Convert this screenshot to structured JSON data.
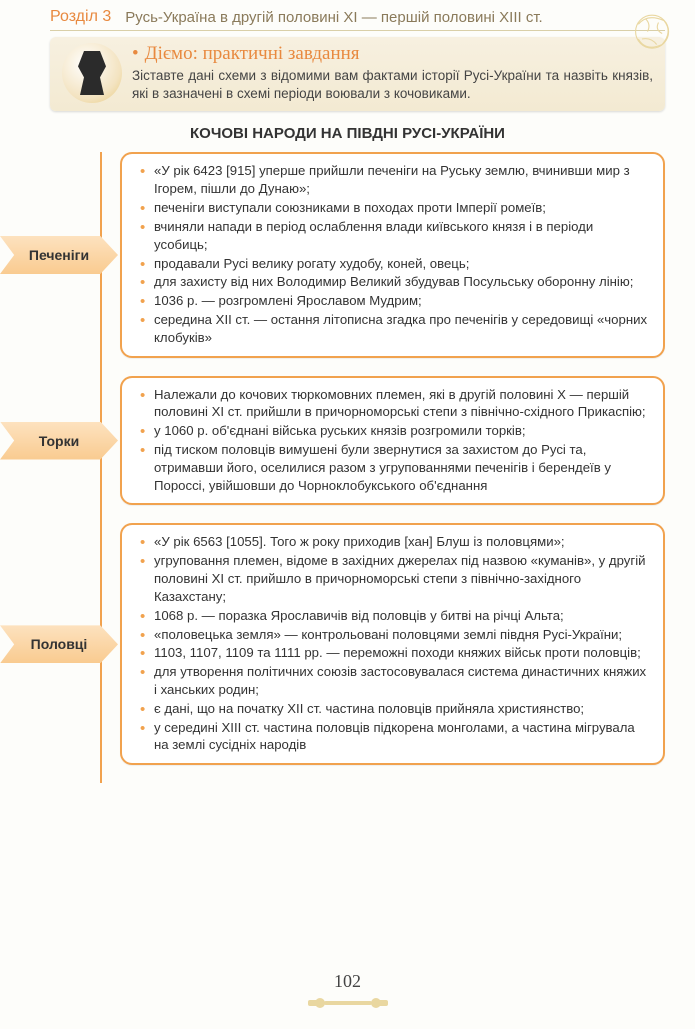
{
  "header": {
    "chapter": "Розділ 3",
    "title": "Русь-Україна в другій половині XI — першій половині XIII ст."
  },
  "callout": {
    "title": "Діємо: практичні завдання",
    "text": "Зіставте дані схеми з відомими вам фактами історії Русі-України та назвіть князів, які в зазначені в схемі періоди воювали з кочовиками.",
    "bg_gradient": [
      "#f7f0e0",
      "#f3ead2"
    ],
    "title_color": "#e8893f"
  },
  "section_title": "КОЧОВІ НАРОДИ НА ПІВДНІ РУСІ-УКРАЇНИ",
  "diagram": {
    "line_color": "#f1a24e",
    "label_gradient": [
      "#fde2bf",
      "#f9cb90"
    ],
    "box_border_color": "#f1a24e",
    "bullet_color": "#f1a24e",
    "blocks": [
      {
        "label": "Печеніги",
        "items": [
          "«У рік 6423 [915] уперше прийшли печеніги на Руську землю, вчинивши мир з Ігорем, пішли до Дунаю»;",
          "печеніги виступали союзниками в походах проти Імперії ромеїв;",
          "вчиняли напади в період ослаблення влади київського князя і в періоди усобиць;",
          "продавали Русі велику рогату худобу, коней, овець;",
          "для захисту від них Володимир Великий збудував Посульську оборонну лінію;",
          "1036 р. — розгромлені Ярославом Мудрим;",
          "середина XII ст. — остання літописна згадка про печенігів у середовищі «чорних клобуків»"
        ]
      },
      {
        "label": "Торки",
        "items": [
          "Належали до кочових тюркомовних племен, які в другій половині X — першій половині XI ст. прийшли в причорноморські степи з північно-східного Прикаспію;",
          "у 1060 р. об'єднані війська руських князів розгромили торків;",
          "під тиском половців вимушені були звернутися за захистом до Русі та, отримавши його, оселилися разом з угрупованнями печенігів і берендеїв у Пороссі, увійшовши до Чорноклобукського об'єднання"
        ]
      },
      {
        "label": "Половці",
        "items": [
          "«У рік 6563 [1055]. Того ж року приходив [хан] Блуш із половцями»;",
          "угруповання племен, відоме в західних джерелах під назвою «куманів», у другій половині XI ст. прийшло в причорноморські степи з північно-західного  Казахстану;",
          "1068 р. — поразка Ярославичів від половців у битві на річці Альта;",
          "«половецька земля» — контрольовані половцями землі півдня Русі-України;",
          "1103, 1107, 1109 та 1111 рр. — переможні походи княжих військ проти половців;",
          "для утворення політичних союзів застосовувалася система династичних княжих і ханських родин;",
          "є дані, що на початку XII ст. частина половців прийняла християнство;",
          "у середині XIII ст. частина половців підкорена монголами, а частина мігрувала на землі сусідніх народів"
        ]
      }
    ]
  },
  "page_number": "102",
  "colors": {
    "page_bg": "#fdfdfa",
    "header_text": "#8a7a5a",
    "accent": "#e8893f"
  }
}
